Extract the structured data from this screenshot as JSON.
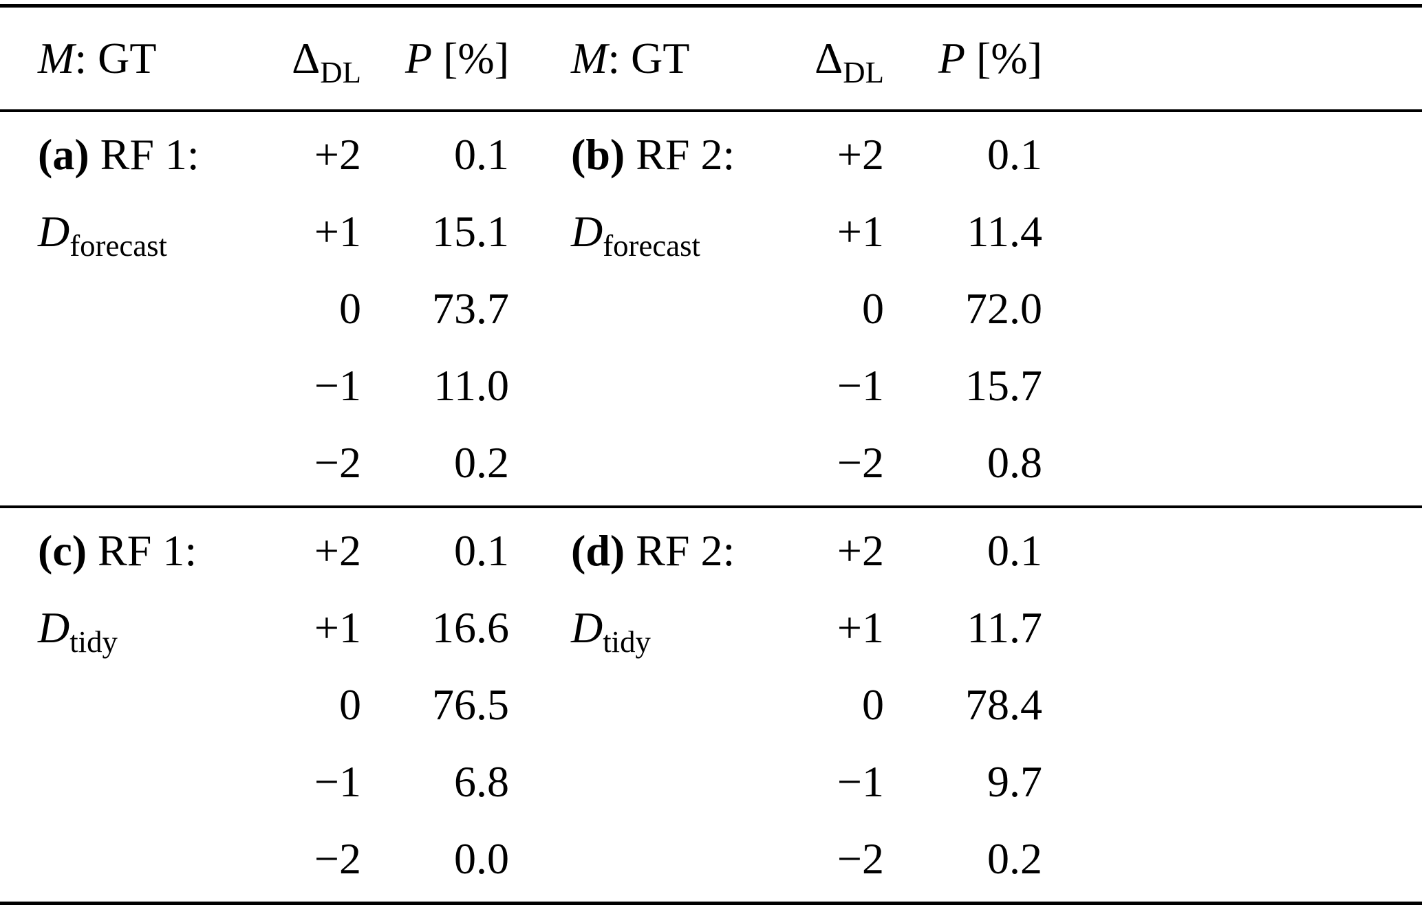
{
  "header": {
    "m_italic": "M",
    "m_rest": ": GT",
    "delta": "Δ",
    "delta_sub": "DL",
    "p_italic": "P",
    "p_rest": " [%]"
  },
  "blocks": {
    "a": {
      "tag": "(a)",
      "model": " RF 1:",
      "dataset_symbol": "D",
      "dataset_sub": "forecast",
      "rows": [
        {
          "delta": "+2",
          "p": "0.1"
        },
        {
          "delta": "+1",
          "p": "15.1"
        },
        {
          "delta": "0",
          "p": "73.7"
        },
        {
          "delta": "−1",
          "p": "11.0"
        },
        {
          "delta": "−2",
          "p": "0.2"
        }
      ]
    },
    "b": {
      "tag": "(b)",
      "model": " RF 2:",
      "dataset_symbol": "D",
      "dataset_sub": "forecast",
      "rows": [
        {
          "delta": "+2",
          "p": "0.1"
        },
        {
          "delta": "+1",
          "p": "11.4"
        },
        {
          "delta": "0",
          "p": "72.0"
        },
        {
          "delta": "−1",
          "p": "15.7"
        },
        {
          "delta": "−2",
          "p": "0.8"
        }
      ]
    },
    "c": {
      "tag": "(c)",
      "model": " RF 1:",
      "dataset_symbol": "D",
      "dataset_sub": "tidy",
      "rows": [
        {
          "delta": "+2",
          "p": "0.1"
        },
        {
          "delta": "+1",
          "p": "16.6"
        },
        {
          "delta": "0",
          "p": "76.5"
        },
        {
          "delta": "−1",
          "p": "6.8"
        },
        {
          "delta": "−2",
          "p": "0.0"
        }
      ]
    },
    "d": {
      "tag": "(d)",
      "model": " RF 2:",
      "dataset_symbol": "D",
      "dataset_sub": "tidy",
      "rows": [
        {
          "delta": "+2",
          "p": "0.1"
        },
        {
          "delta": "+1",
          "p": "11.7"
        },
        {
          "delta": "0",
          "p": "78.4"
        },
        {
          "delta": "−1",
          "p": "9.7"
        },
        {
          "delta": "−2",
          "p": "0.2"
        }
      ]
    }
  },
  "chart_data": {
    "type": "table",
    "columns": [
      "M: GT",
      "Δ_DL",
      "P [%]",
      "M: GT",
      "Δ_DL",
      "P [%]"
    ],
    "delta_categories": [
      "+2",
      "+1",
      "0",
      "−1",
      "−2"
    ],
    "series": [
      {
        "name": "(a) RF 1: D_forecast",
        "values": [
          0.1,
          15.1,
          73.7,
          11.0,
          0.2
        ]
      },
      {
        "name": "(b) RF 2: D_forecast",
        "values": [
          0.1,
          11.4,
          72.0,
          15.7,
          0.8
        ]
      },
      {
        "name": "(c) RF 1: D_tidy",
        "values": [
          0.1,
          16.6,
          76.5,
          6.8,
          0.0
        ]
      },
      {
        "name": "(d) RF 2: D_tidy",
        "values": [
          0.1,
          11.7,
          78.4,
          9.7,
          0.2
        ]
      }
    ],
    "value_unit": "%"
  }
}
